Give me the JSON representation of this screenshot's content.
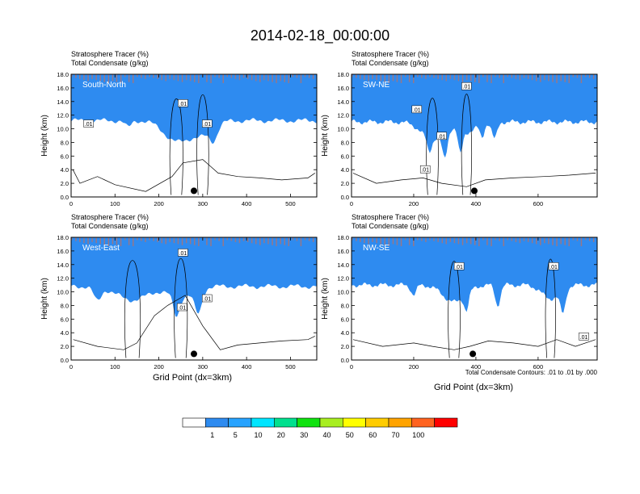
{
  "figure": {
    "title": "2014-02-18_00:00:00",
    "panel_title_1": "Stratosphere Tracer   (%)",
    "panel_title_2": "Total Condensate   (g/kg)",
    "ylabel": "Height (km)",
    "xlabel": "Grid Point (dx=3km)",
    "contour_note": "Total Condensate Contours: .01 to .01 by .000",
    "label_bg": "#ffffff"
  },
  "colorbar": {
    "levels": [
      "1",
      "5",
      "10",
      "20",
      "30",
      "40",
      "50",
      "60",
      "70",
      "100"
    ],
    "colors": [
      "#ffffff",
      "#2e8bf0",
      "#27a3ff",
      "#00e5ff",
      "#00e08e",
      "#10e210",
      "#a8ee20",
      "#ffff00",
      "#ffcc00",
      "#ffa300",
      "#ff6320",
      "#ff0000"
    ]
  },
  "chart_data": [
    {
      "type": "heatmap",
      "panel_label": "South-North",
      "xlim": [
        0,
        560
      ],
      "ylim": [
        0,
        18
      ],
      "xticks": [
        0,
        100,
        200,
        300,
        400,
        500
      ],
      "yticks": [
        "0.0",
        "2.0",
        "4.0",
        "6.0",
        "8.0",
        "10.0",
        "12.0",
        "14.0",
        "16.0",
        "18.0"
      ],
      "base": 16.2,
      "notches": [
        [
          240,
          3.0,
          40
        ],
        [
          300,
          2.0,
          35
        ]
      ],
      "fingers": [
        [
          130,
          1.0,
          10
        ],
        [
          325,
          1.8,
          12
        ]
      ],
      "cloud_base": [
        [
          4,
          4.0
        ],
        [
          20,
          2.0
        ],
        [
          60,
          3.0
        ],
        [
          100,
          1.8
        ],
        [
          170,
          0.8
        ],
        [
          230,
          3.0
        ],
        [
          255,
          5.0
        ],
        [
          300,
          5.5
        ],
        [
          335,
          3.5
        ],
        [
          380,
          3.0
        ],
        [
          430,
          2.8
        ],
        [
          480,
          2.5
        ],
        [
          540,
          2.8
        ],
        [
          556,
          3.5
        ]
      ],
      "contour_labels": [
        [
          40,
          10.7,
          ".01"
        ],
        [
          255,
          13.7,
          ".01"
        ],
        [
          310,
          10.7,
          ".01"
        ]
      ],
      "marker": [
        280,
        0.9
      ]
    },
    {
      "type": "heatmap",
      "panel_label": "SW-NE",
      "xlim": [
        0,
        790
      ],
      "ylim": [
        0,
        18
      ],
      "xticks": [
        0,
        200,
        400,
        600
      ],
      "yticks": [
        "0.0",
        "2.0",
        "4.0",
        "6.0",
        "8.0",
        "10.0",
        "12.0",
        "14.0",
        "16.0",
        "18.0"
      ],
      "base": 16.0,
      "notches": [
        [
          260,
          2.5,
          50
        ],
        [
          370,
          1.5,
          40
        ]
      ],
      "fingers": [
        [
          250,
          2.0,
          10
        ],
        [
          300,
          4.0,
          12
        ],
        [
          350,
          3.5,
          10
        ],
        [
          420,
          2.0,
          10
        ],
        [
          460,
          2.5,
          12
        ]
      ],
      "cloud_base": [
        [
          5,
          3.5
        ],
        [
          80,
          2.0
        ],
        [
          160,
          2.5
        ],
        [
          230,
          2.8
        ],
        [
          290,
          2.0
        ],
        [
          370,
          1.5
        ],
        [
          430,
          2.5
        ],
        [
          520,
          2.8
        ],
        [
          620,
          3.0
        ],
        [
          700,
          3.2
        ],
        [
          785,
          3.5
        ]
      ],
      "contour_labels": [
        [
          210,
          12.8,
          ".01"
        ],
        [
          290,
          8.9,
          ".01"
        ],
        [
          237,
          4.0,
          ".01"
        ],
        [
          370,
          16.2,
          ".01"
        ]
      ],
      "marker": [
        395,
        0.9
      ]
    },
    {
      "type": "heatmap",
      "panel_label": "West-East",
      "xlim": [
        0,
        560
      ],
      "ylim": [
        0,
        18
      ],
      "xticks": [
        0,
        100,
        200,
        300,
        400,
        500
      ],
      "yticks": [
        "0.0",
        "2.0",
        "4.0",
        "6.0",
        "8.0",
        "10.0",
        "12.0",
        "14.0",
        "16.0",
        "18.0"
      ],
      "base": 15.8,
      "notches": [
        [
          140,
          2.0,
          50
        ],
        [
          250,
          1.5,
          40
        ]
      ],
      "fingers": [
        [
          60,
          2.0,
          12
        ],
        [
          240,
          3.0,
          10
        ],
        [
          290,
          3.5,
          12
        ]
      ],
      "cloud_base": [
        [
          5,
          3.0
        ],
        [
          60,
          2.0
        ],
        [
          120,
          1.5
        ],
        [
          150,
          2.5
        ],
        [
          190,
          6.5
        ],
        [
          220,
          8.0
        ],
        [
          260,
          9.5
        ],
        [
          300,
          5.0
        ],
        [
          340,
          1.5
        ],
        [
          380,
          2.2
        ],
        [
          430,
          2.5
        ],
        [
          480,
          2.8
        ],
        [
          540,
          3.0
        ],
        [
          556,
          3.5
        ]
      ],
      "contour_labels": [
        [
          255,
          15.7,
          ".01"
        ],
        [
          253,
          7.7,
          ".01"
        ],
        [
          310,
          9.0,
          ".01"
        ]
      ],
      "marker": [
        280,
        0.9
      ]
    },
    {
      "type": "heatmap",
      "panel_label": "NW-SE",
      "xlim": [
        0,
        790
      ],
      "ylim": [
        0,
        18
      ],
      "xticks": [
        0,
        200,
        400,
        600
      ],
      "yticks": [
        "0.0",
        "2.0",
        "4.0",
        "6.0",
        "8.0",
        "10.0",
        "12.0",
        "14.0",
        "16.0",
        "18.0"
      ],
      "base": 16.0,
      "notches": [
        [
          330,
          2.5,
          50
        ],
        [
          640,
          2.0,
          40
        ]
      ],
      "fingers": [
        [
          200,
          1.5,
          12
        ],
        [
          370,
          2.5,
          10
        ],
        [
          470,
          3.0,
          12
        ],
        [
          680,
          3.5,
          12
        ]
      ],
      "cloud_base": [
        [
          5,
          3.0
        ],
        [
          100,
          2.0
        ],
        [
          200,
          2.5
        ],
        [
          260,
          2.0
        ],
        [
          330,
          1.5
        ],
        [
          380,
          2.0
        ],
        [
          440,
          2.8
        ],
        [
          520,
          2.5
        ],
        [
          600,
          2.0
        ],
        [
          660,
          3.0
        ],
        [
          720,
          2.0
        ],
        [
          785,
          3.0
        ]
      ],
      "contour_labels": [
        [
          346,
          13.7,
          ".01"
        ],
        [
          650,
          13.7,
          ".01"
        ],
        [
          747,
          3.4,
          ".01"
        ]
      ],
      "marker": [
        390,
        0.9
      ]
    }
  ]
}
